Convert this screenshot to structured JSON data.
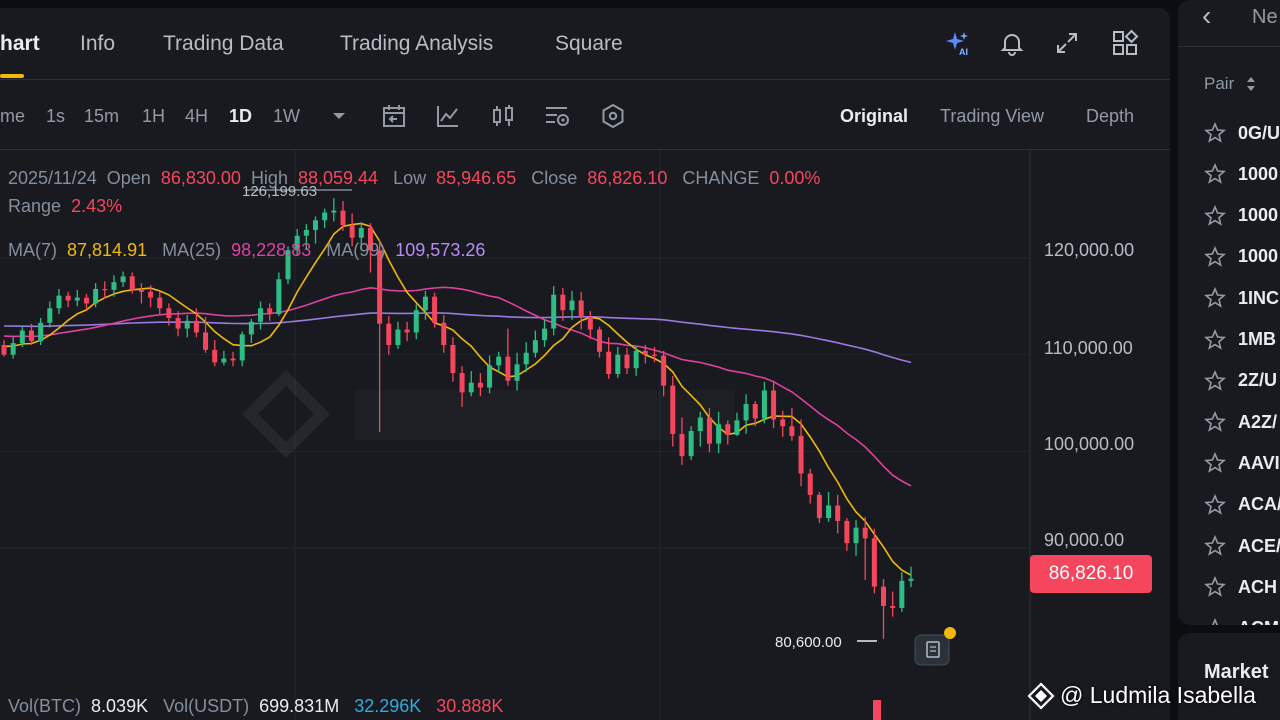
{
  "header": {
    "tabs": [
      {
        "label": "hart",
        "active": true
      },
      {
        "label": "Info",
        "active": false
      },
      {
        "label": "Trading Data",
        "active": false
      },
      {
        "label": "Trading Analysis",
        "active": false
      },
      {
        "label": "Square",
        "active": false
      }
    ],
    "icons": [
      "ai-sparkle-icon",
      "bell-icon",
      "expand-icon",
      "layout-grid-icon"
    ]
  },
  "toolbar": {
    "timeframes": [
      {
        "label": "me",
        "active": false
      },
      {
        "label": "1s",
        "active": false
      },
      {
        "label": "15m",
        "active": false
      },
      {
        "label": "1H",
        "active": false
      },
      {
        "label": "4H",
        "active": false
      },
      {
        "label": "1D",
        "active": true
      },
      {
        "label": "1W",
        "active": false
      }
    ],
    "icons": [
      "dropdown-caret-icon",
      "calendar-icon",
      "indicator-icon",
      "candle-type-icon",
      "chart-settings-icon",
      "hexagon-settings-icon"
    ],
    "views": [
      {
        "label": "Original",
        "active": true
      },
      {
        "label": "Trading View",
        "active": false
      },
      {
        "label": "Depth",
        "active": false
      }
    ]
  },
  "ohlc": {
    "date": "2025/11/24",
    "open_label": "Open",
    "open": "86,830.00",
    "high_label": "High",
    "high": "88,059.44",
    "low_label": "Low",
    "low": "85,946.65",
    "close_label": "Close",
    "close": "86,826.10",
    "change_label": "CHANGE",
    "change": "0.00%",
    "range_label": "Range",
    "range": "2.43%"
  },
  "ma": {
    "ma7_label": "MA(7)",
    "ma7": "87,814.91",
    "ma25_label": "MA(25)",
    "ma25": "98,228.83",
    "ma99_label": "MA(99)",
    "ma99": "109,573.26"
  },
  "volume": {
    "btc_label": "Vol(BTC)",
    "btc": "8.039K",
    "usdt_label": "Vol(USDT)",
    "usdt": "699.831M",
    "v1": "32.296K",
    "v2": "30.888K"
  },
  "chart_data": {
    "type": "candlestick",
    "pair_interval": "1D",
    "y_ticks": [
      "120,000.00",
      "110,000.00",
      "100,000.00",
      "90,000.00"
    ],
    "ylim": [
      80000,
      130000
    ],
    "current_price": "86,826.10",
    "annotations": {
      "max": "126,199.63",
      "min": "80,600.00"
    },
    "colors": {
      "up": "#2ebd85",
      "down": "#f6465d",
      "ma7": "#f0b90b",
      "ma25": "#e040a0",
      "ma99": "#9a7ae0"
    },
    "candles": [
      [
        111000,
        110000,
        111500,
        109800
      ],
      [
        110000,
        111200,
        111800,
        109600
      ],
      [
        111200,
        112500,
        113000,
        110800
      ],
      [
        112500,
        111400,
        113200,
        111000
      ],
      [
        111400,
        113300,
        113800,
        111000
      ],
      [
        113300,
        114800,
        115500,
        112800
      ],
      [
        114800,
        116100,
        116800,
        114200
      ],
      [
        116100,
        115600,
        116500,
        114900
      ],
      [
        115600,
        115900,
        116700,
        115000
      ],
      [
        115900,
        115300,
        116300,
        114600
      ],
      [
        115300,
        116800,
        117400,
        114900
      ],
      [
        116800,
        116700,
        117600,
        115800
      ],
      [
        116700,
        117500,
        118200,
        116000
      ],
      [
        117500,
        118100,
        118600,
        117000
      ],
      [
        118100,
        116700,
        118500,
        116300
      ],
      [
        116700,
        116500,
        117400,
        115300
      ],
      [
        116500,
        115900,
        117200,
        114900
      ],
      [
        115900,
        114800,
        116600,
        114200
      ],
      [
        114800,
        113800,
        115300,
        113000
      ],
      [
        113800,
        112700,
        114500,
        111900
      ],
      [
        112700,
        113500,
        114100,
        111800
      ],
      [
        113500,
        112300,
        114800,
        111800
      ],
      [
        112300,
        110500,
        113900,
        110200
      ],
      [
        110500,
        109200,
        111500,
        108800
      ],
      [
        109200,
        109600,
        110400,
        108900
      ],
      [
        109600,
        109400,
        110300,
        108800
      ],
      [
        109400,
        112100,
        112400,
        108800
      ],
      [
        112100,
        113400,
        113700,
        111200
      ],
      [
        113400,
        114800,
        115500,
        112600
      ],
      [
        114800,
        114200,
        115300,
        113500
      ],
      [
        114200,
        117800,
        118500,
        114000
      ],
      [
        117800,
        120800,
        121200,
        117300
      ],
      [
        120800,
        122300,
        123000,
        120200
      ],
      [
        122300,
        122900,
        123500,
        120900
      ],
      [
        122900,
        123900,
        124300,
        121500
      ],
      [
        123900,
        124700,
        125100,
        123100
      ],
      [
        124700,
        124900,
        126199,
        123800
      ],
      [
        124900,
        123400,
        125900,
        122800
      ],
      [
        123400,
        122100,
        124600,
        121200
      ],
      [
        122100,
        123100,
        123700,
        120800
      ],
      [
        123100,
        120800,
        123600,
        118500
      ],
      [
        120800,
        113200,
        121900,
        102000
      ],
      [
        113200,
        111000,
        114000,
        110000
      ],
      [
        111000,
        112600,
        113400,
        110600
      ],
      [
        112600,
        112300,
        113400,
        111400
      ],
      [
        112300,
        114600,
        115200,
        111600
      ],
      [
        114600,
        116000,
        116600,
        113600
      ],
      [
        116000,
        113300,
        116400,
        112800
      ],
      [
        113300,
        111000,
        114100,
        110200
      ],
      [
        111000,
        108100,
        111800,
        107200
      ],
      [
        108100,
        106100,
        108800,
        104600
      ],
      [
        106100,
        107100,
        108300,
        105700
      ],
      [
        107100,
        106600,
        108100,
        105700
      ],
      [
        106600,
        108900,
        109900,
        106000
      ],
      [
        108900,
        109800,
        110300,
        108100
      ],
      [
        109800,
        107300,
        112700,
        106800
      ],
      [
        107300,
        109000,
        110200,
        106300
      ],
      [
        109000,
        110200,
        111300,
        108200
      ],
      [
        110200,
        111500,
        112500,
        109700
      ],
      [
        111500,
        112700,
        113600,
        110800
      ],
      [
        112700,
        116200,
        117100,
        112000
      ],
      [
        116200,
        114600,
        116900,
        113500
      ],
      [
        114600,
        115600,
        116600,
        113600
      ],
      [
        115600,
        113900,
        116500,
        112600
      ],
      [
        113900,
        112600,
        114500,
        111600
      ],
      [
        112600,
        110300,
        112900,
        109700
      ],
      [
        110300,
        108000,
        111800,
        107500
      ],
      [
        108000,
        110000,
        110800,
        107600
      ],
      [
        110000,
        108600,
        110700,
        108000
      ],
      [
        108600,
        110400,
        110900,
        107800
      ],
      [
        110400,
        110000,
        111000,
        109100
      ],
      [
        110000,
        109900,
        110800,
        109200
      ],
      [
        109900,
        106800,
        110400,
        105700
      ],
      [
        106800,
        101800,
        107800,
        100500
      ],
      [
        101800,
        99500,
        103500,
        98600
      ],
      [
        99500,
        102100,
        102600,
        99100
      ],
      [
        102100,
        103500,
        104100,
        100500
      ],
      [
        103500,
        100800,
        104500,
        99900
      ],
      [
        100800,
        102800,
        104100,
        99800
      ],
      [
        102800,
        101700,
        103200,
        100700
      ],
      [
        101700,
        103200,
        104000,
        101600
      ],
      [
        103200,
        104900,
        105900,
        101800
      ],
      [
        104900,
        103400,
        105200,
        102600
      ],
      [
        103400,
        106300,
        107200,
        102900
      ],
      [
        106300,
        103300,
        107200,
        102400
      ],
      [
        103300,
        102600,
        104200,
        101500
      ],
      [
        102600,
        101600,
        104500,
        101100
      ],
      [
        101600,
        97700,
        103300,
        96400
      ],
      [
        97700,
        95500,
        98200,
        94600
      ],
      [
        95500,
        93100,
        95800,
        92600
      ],
      [
        93100,
        94400,
        95800,
        92700
      ],
      [
        94400,
        92800,
        95500,
        91500
      ],
      [
        92800,
        90500,
        93100,
        89700
      ],
      [
        90500,
        92100,
        92900,
        89200
      ],
      [
        92100,
        91000,
        93200,
        86700
      ],
      [
        91000,
        86000,
        92000,
        85300
      ],
      [
        86000,
        84000,
        86800,
        80600
      ],
      [
        84000,
        83800,
        85500,
        82900
      ],
      [
        83800,
        86600,
        87500,
        83400
      ],
      [
        86600,
        86826,
        88059,
        85946
      ]
    ]
  },
  "side_panel": {
    "back_label": "‹",
    "title_partial": "Ne",
    "pair_header": "Pair",
    "pairs": [
      "0G/U",
      "1000",
      "1000",
      "1000",
      "1INC",
      "1MB",
      "2Z/U",
      "A2Z/",
      "AAVI",
      "ACA/",
      "ACE/",
      "ACH",
      "ACM"
    ],
    "market_label": "Market"
  },
  "watermark": {
    "author": "@ Ludmila Isabella"
  }
}
